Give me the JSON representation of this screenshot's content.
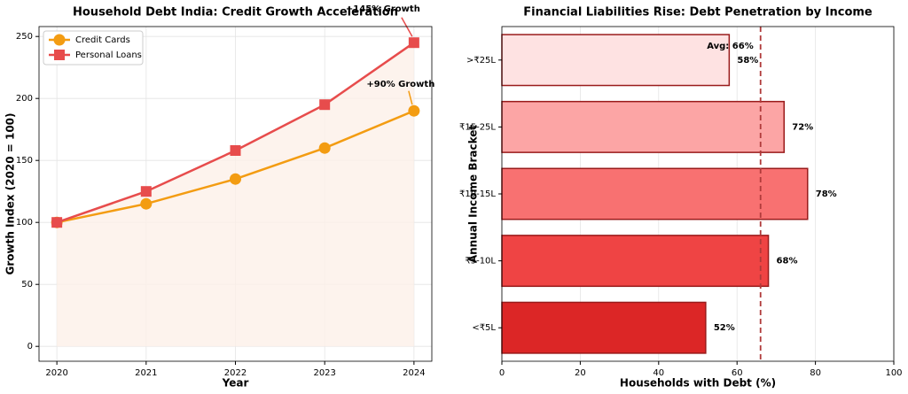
{
  "chart_data": [
    {
      "type": "line",
      "title": "Household Debt India: Credit Growth Acceleration",
      "x_label": "Year",
      "y_label": "Growth Index (2020 = 100)",
      "x": [
        2020,
        2021,
        2022,
        2023,
        2024
      ],
      "series": [
        {
          "name": "Credit Cards",
          "color": "#f39c12",
          "marker": "circle",
          "values": [
            100,
            115,
            135,
            160,
            190
          ]
        },
        {
          "name": "Personal Loans",
          "color": "#e74c4c",
          "marker": "square",
          "values": [
            100,
            125,
            158,
            195,
            245
          ],
          "fill": "#fdf0e8"
        }
      ],
      "xlim": [
        2019.8,
        2024.2
      ],
      "xticks": [
        2020,
        2021,
        2022,
        2023,
        2024
      ],
      "ylim": [
        -12,
        258
      ],
      "yticks": [
        0,
        50,
        100,
        150,
        200,
        250
      ],
      "grid": true,
      "legend": "upper left",
      "annotations": [
        {
          "text": "+145% Growth",
          "series": 1,
          "index": 4
        },
        {
          "text": "+90% Growth",
          "series": 0,
          "index": 4
        }
      ]
    },
    {
      "type": "hbar",
      "title": "Financial Liabilities Rise: Debt Penetration by Income",
      "x_label": "Households with Debt (%)",
      "y_label": "Annual Income Bracket",
      "categories": [
        "<₹5L",
        "₹5-10L",
        "₹10-15L",
        "₹15-25L",
        ">₹25L"
      ],
      "values": [
        52,
        68,
        78,
        72,
        58
      ],
      "value_labels": [
        "52%",
        "68%",
        "78%",
        "72%",
        "58%"
      ],
      "colors": [
        "#dc2626",
        "#ef4444",
        "#f87171",
        "#fca5a5",
        "#fee2e2"
      ],
      "edge_color": "#991b1b",
      "xlim": [
        0,
        100
      ],
      "xticks": [
        0,
        20,
        40,
        60,
        80,
        100
      ],
      "grid": true,
      "reference_line": {
        "value": 66,
        "label": "Avg: 66%",
        "color": "#b03a3a"
      }
    }
  ]
}
